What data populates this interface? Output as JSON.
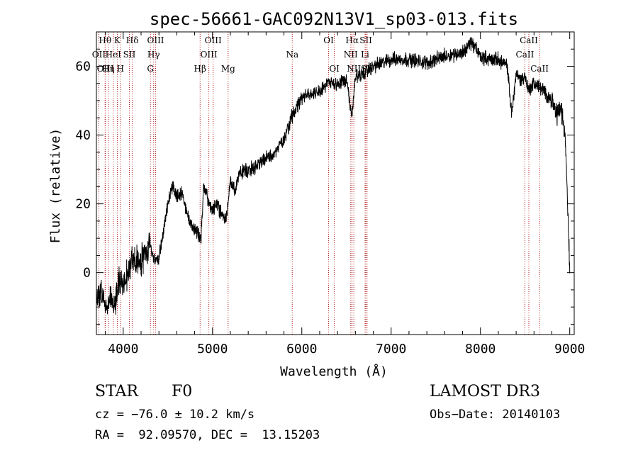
{
  "chart_data": {
    "type": "line",
    "title": "spec-56661-GAC092N13V1_sp03-013.fits",
    "xlabel": "Wavelength (Å)",
    "ylabel": "Flux (relative)",
    "xlim": [
      3700,
      9050
    ],
    "ylim": [
      -18,
      70
    ],
    "xticks": [
      4000,
      5000,
      6000,
      7000,
      8000,
      9000
    ],
    "yticks": [
      0,
      20,
      40,
      60
    ],
    "series": [
      {
        "name": "flux",
        "x": [
          3700,
          3750,
          3800,
          3850,
          3900,
          3950,
          4000,
          4050,
          4100,
          4150,
          4200,
          4250,
          4300,
          4350,
          4400,
          4450,
          4500,
          4550,
          4600,
          4650,
          4700,
          4750,
          4800,
          4850,
          4870,
          4900,
          4950,
          5000,
          5050,
          5100,
          5150,
          5200,
          5250,
          5300,
          5400,
          5500,
          5600,
          5700,
          5800,
          5900,
          6000,
          6100,
          6200,
          6300,
          6400,
          6500,
          6560,
          6600,
          6700,
          6800,
          6900,
          7000,
          7200,
          7400,
          7600,
          7800,
          7900,
          8000,
          8100,
          8200,
          8300,
          8350,
          8400,
          8450,
          8500,
          8540,
          8600,
          8660,
          8700,
          8800,
          8850,
          8900,
          8950,
          9000
        ],
        "y": [
          -8,
          -5,
          -10,
          -7,
          -10,
          -3,
          -2,
          0,
          3,
          4,
          3,
          6,
          8,
          4,
          4,
          12,
          20,
          25,
          22,
          23,
          19,
          14,
          13,
          11,
          9,
          26,
          21,
          18,
          20,
          17,
          15,
          27,
          24,
          29,
          30,
          31,
          33,
          35,
          39,
          46,
          51,
          52,
          53,
          55,
          55,
          56,
          45,
          57,
          58,
          60,
          61,
          62,
          62,
          61,
          63,
          64,
          67,
          63,
          62,
          62,
          60,
          46,
          58,
          56,
          57,
          53,
          55,
          54,
          53,
          50,
          46,
          48,
          40,
          2
        ]
      }
    ],
    "lines": [
      {
        "label": "Hθ",
        "x": 3797,
        "row": 1
      },
      {
        "label": "OII",
        "x": 3727,
        "row": 2
      },
      {
        "label": "OIII",
        "x": 3800,
        "row": 3
      },
      {
        "label": "Hη",
        "x": 3835,
        "row": 3
      },
      {
        "label": "K",
        "x": 3934,
        "row": 1
      },
      {
        "label": "HeI",
        "x": 3889,
        "row": 2
      },
      {
        "label": "H",
        "x": 3969,
        "row": 3
      },
      {
        "label": "Hδ",
        "x": 4102,
        "row": 1
      },
      {
        "label": "SII",
        "x": 4069,
        "row": 2
      },
      {
        "label": "OIII",
        "x": 4363,
        "row": 1
      },
      {
        "label": "Hγ",
        "x": 4341,
        "row": 2
      },
      {
        "label": "G",
        "x": 4305,
        "row": 3
      },
      {
        "label": "Hβ",
        "x": 4861,
        "row": 3
      },
      {
        "label": "OIII",
        "x": 5007,
        "row": 1
      },
      {
        "label": "OIII",
        "x": 4959,
        "row": 2
      },
      {
        "label": "Mg",
        "x": 5175,
        "row": 3
      },
      {
        "label": "Na",
        "x": 5893,
        "row": 2
      },
      {
        "label": "OI",
        "x": 6300,
        "row": 1
      },
      {
        "label": "OI",
        "x": 6364,
        "row": 3
      },
      {
        "label": "Hα",
        "x": 6563,
        "row": 1
      },
      {
        "label": "NII",
        "x": 6548,
        "row": 2
      },
      {
        "label": "NII",
        "x": 6583,
        "row": 3
      },
      {
        "label": "SII",
        "x": 6717,
        "row": 1
      },
      {
        "label": "Li",
        "x": 6708,
        "row": 2
      },
      {
        "label": "SII",
        "x": 6731,
        "row": 3
      },
      {
        "label": "CaII",
        "x": 8542,
        "row": 1
      },
      {
        "label": "CaII",
        "x": 8498,
        "row": 2
      },
      {
        "label": "CaII",
        "x": 8662,
        "row": 3
      }
    ]
  },
  "footer": {
    "class_label": "STAR",
    "subclass": "F0",
    "survey": "LAMOST DR3",
    "redshift": "cz = −76.0 ± 10.2 km/s",
    "obs_date": "Obs−Date: 20140103",
    "coords": "RA =  92.09570, DEC =  13.15203"
  }
}
